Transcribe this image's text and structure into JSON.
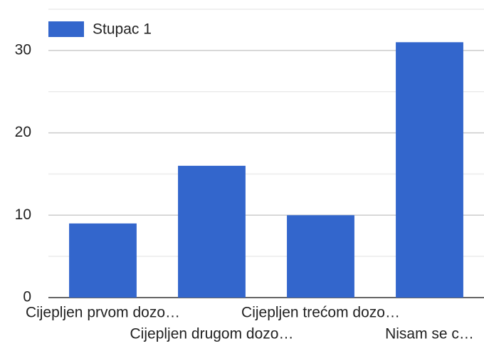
{
  "chart_data": {
    "type": "bar",
    "categories": [
      "Cijepljen prvom dozo…",
      "Cijepljen drugom dozo…",
      "Cijepljen trećom dozo…",
      "Nisam se c…"
    ],
    "series": [
      {
        "name": "Stupac 1",
        "color": "#3366cc",
        "values": [
          9,
          16,
          10,
          31
        ]
      }
    ],
    "ylim": [
      0,
      35
    ],
    "yticks": [
      0,
      10,
      20,
      30
    ],
    "minor_yticks": [
      5,
      15,
      25,
      35
    ],
    "grid": true,
    "legend": "top-left"
  }
}
